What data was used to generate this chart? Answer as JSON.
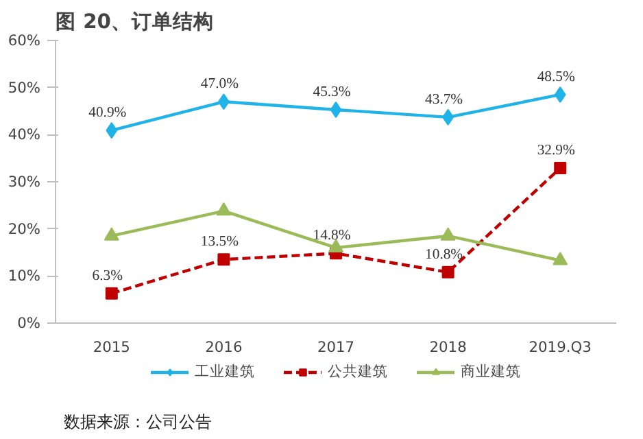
{
  "chart_data": {
    "type": "line",
    "title": "图 20、订单结构",
    "categories": [
      "2015",
      "2016",
      "2017",
      "2018",
      "2019.Q3"
    ],
    "series": [
      {
        "name": "工业建筑",
        "color": "#1fb3e8",
        "marker": "diamond",
        "line_style": "solid",
        "values": [
          40.9,
          47.0,
          45.3,
          43.7,
          48.5
        ],
        "value_labels": [
          "40.9%",
          "47.0%",
          "45.3%",
          "43.7%",
          "48.5%"
        ]
      },
      {
        "name": "公共建筑",
        "color": "#c00000",
        "marker": "square",
        "line_style": "dashed",
        "values": [
          6.3,
          13.5,
          14.8,
          10.8,
          32.9
        ],
        "value_labels": [
          "6.3%",
          "13.5%",
          "14.8%",
          "10.8%",
          "32.9%"
        ]
      },
      {
        "name": "商业建筑",
        "color": "#9bbb59",
        "marker": "triangle",
        "line_style": "solid",
        "values": [
          18.5,
          23.8,
          16.0,
          18.5,
          13.3
        ]
      }
    ],
    "ylim": [
      0,
      60
    ],
    "yticks": [
      {
        "value": 0,
        "label": "0%"
      },
      {
        "value": 10,
        "label": "10%"
      },
      {
        "value": 20,
        "label": "20%"
      },
      {
        "value": 30,
        "label": "30%"
      },
      {
        "value": 40,
        "label": "40%"
      },
      {
        "value": 50,
        "label": "50%"
      },
      {
        "value": 60,
        "label": "60%"
      }
    ],
    "grid": false,
    "legend": "bottom",
    "annotations": [
      "数据来源：公司公告"
    ]
  }
}
